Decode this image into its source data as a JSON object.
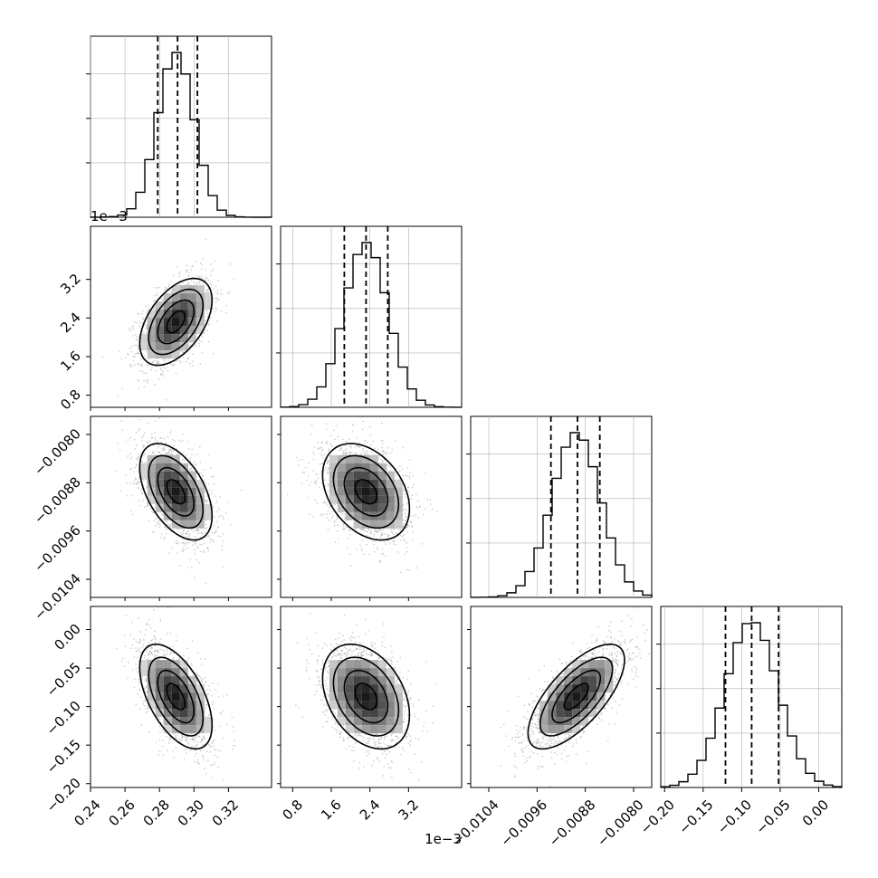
{
  "chart_data": {
    "type": "corner",
    "params": [
      {
        "range": [
          0.24,
          0.345
        ],
        "ticks": [
          0.24,
          0.26,
          0.28,
          0.3,
          0.32
        ],
        "tick_labels": [
          "0.24",
          "0.26",
          "0.28",
          "0.30",
          "0.32"
        ],
        "offset_text": "",
        "quantiles": [
          0.279,
          0.2905,
          0.302
        ],
        "mean": 0.2895,
        "sd": 0.0105
      },
      {
        "range": [
          0.00055,
          0.0043
        ],
        "ticks": [
          0.0008,
          0.0016,
          0.0024,
          0.0032
        ],
        "tick_labels": [
          "0.8",
          "1.6",
          "2.4",
          "3.2"
        ],
        "offset_text": "1e−3",
        "quantiles": [
          0.00187,
          0.00232,
          0.00277
        ],
        "mean": 0.00232,
        "sd": 0.00045
      },
      {
        "range": [
          -0.0107,
          -0.0077
        ],
        "ticks": [
          -0.0104,
          -0.0096,
          -0.0088,
          -0.008
        ],
        "tick_labels": [
          "−0.0104",
          "−0.0096",
          "−0.0088",
          "−0.0080"
        ],
        "offset_text": "",
        "quantiles": [
          -0.00937,
          -0.00893,
          -0.00856
        ],
        "mean": -0.00895,
        "sd": 0.0004
      },
      {
        "range": [
          -0.205,
          0.03
        ],
        "ticks": [
          -0.2,
          -0.15,
          -0.1,
          -0.05,
          0.0
        ],
        "tick_labels": [
          "−0.20",
          "−0.15",
          "−0.10",
          "−0.05",
          "0.00"
        ],
        "offset_text": "",
        "quantiles": [
          -0.121,
          -0.087,
          -0.052
        ],
        "mean": -0.087,
        "sd": 0.034
      }
    ],
    "correlations": {
      "1-0": 0.5,
      "2-0": -0.5,
      "2-1": -0.35,
      "3-0": -0.55,
      "3-1": -0.35,
      "3-2": 0.7
    },
    "colors": {
      "line": "#000000",
      "points": "#9e9e9e",
      "grid": "#b0b0b0"
    }
  }
}
